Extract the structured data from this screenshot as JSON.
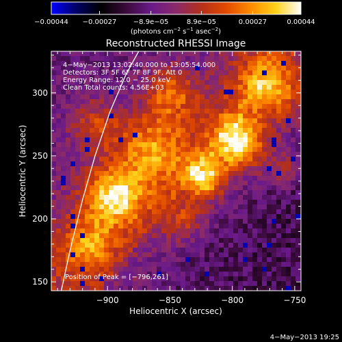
{
  "chart_data": {
    "type": "heatmap",
    "title": "Reconstructed RHESSI Image",
    "xlabel": "Heliocentric X (arcsec)",
    "ylabel": "Heliocentric Y (arcsec)",
    "xlim": [
      -945,
      -745
    ],
    "ylim": [
      143,
      333
    ],
    "x_ticks": [
      -900,
      -850,
      -800,
      -750
    ],
    "x_tick_labels": [
      "−900",
      "−850",
      "−800",
      "−750"
    ],
    "y_ticks": [
      150,
      200,
      250,
      300
    ],
    "y_tick_labels": [
      "150",
      "200",
      "250",
      "300"
    ],
    "colorbar": {
      "min": -0.00044,
      "max": 0.00044,
      "ticks": [
        -0.00044,
        -0.00027,
        -8.9e-05,
        8.9e-05,
        0.00027,
        0.00044
      ],
      "tick_labels": [
        "−0.00044",
        "−0.00027",
        "−8.9e−05",
        "8.9e−05",
        "0.00027",
        "0.00044"
      ],
      "units_prefix": "(photons cm",
      "units_exp1": "−2",
      "units_mid": " s",
      "units_exp2": "−1",
      "units_mid2": " asec",
      "units_exp3": "−2",
      "units_suffix": ")",
      "colormap": [
        "#0000ff",
        "#000066",
        "#000000",
        "#3a0a3a",
        "#6a1a8a",
        "#8a2a6a",
        "#b5301a",
        "#e04a00",
        "#ff8c00",
        "#ffd21a",
        "#ffffff"
      ]
    },
    "info_lines": [
      "4−May−2013 13:02:40.000 to 13:05:54.000",
      "Detectors: 3F 5F 6F 7F 8F 9F, Att 0",
      "Energy Range: 12.0 − 25.0 keV",
      "Clean     Total counts: 4.56E+03"
    ],
    "peak_label": "Position of Peak = [−796,261]",
    "peak": [
      -796,
      261
    ],
    "bright_regions": [
      {
        "x": -796,
        "y": 261,
        "sigma": 14,
        "amp": 1.0
      },
      {
        "x": -822,
        "y": 233,
        "sigma": 11,
        "amp": 0.85
      },
      {
        "x": -895,
        "y": 218,
        "sigma": 16,
        "amp": 0.75
      },
      {
        "x": -865,
        "y": 255,
        "sigma": 20,
        "amp": 0.55
      },
      {
        "x": -770,
        "y": 305,
        "sigma": 18,
        "amp": 0.7
      },
      {
        "x": -850,
        "y": 300,
        "sigma": 14,
        "amp": 0.5
      },
      {
        "x": -840,
        "y": 200,
        "sigma": 12,
        "amp": 0.35
      },
      {
        "x": -915,
        "y": 180,
        "sigma": 14,
        "amp": 0.45
      },
      {
        "x": -910,
        "y": 275,
        "sigma": 14,
        "amp": 0.4
      },
      {
        "x": -760,
        "y": 240,
        "sigma": 10,
        "amp": 0.35
      }
    ],
    "limb_curve": [
      [
        -937,
        143
      ],
      [
        -930,
        175
      ],
      [
        -920,
        215
      ],
      [
        -910,
        250
      ],
      [
        -898,
        285
      ],
      [
        -885,
        315
      ],
      [
        -875,
        333
      ]
    ]
  },
  "footer_timestamp": "4−May−2013 19:25"
}
